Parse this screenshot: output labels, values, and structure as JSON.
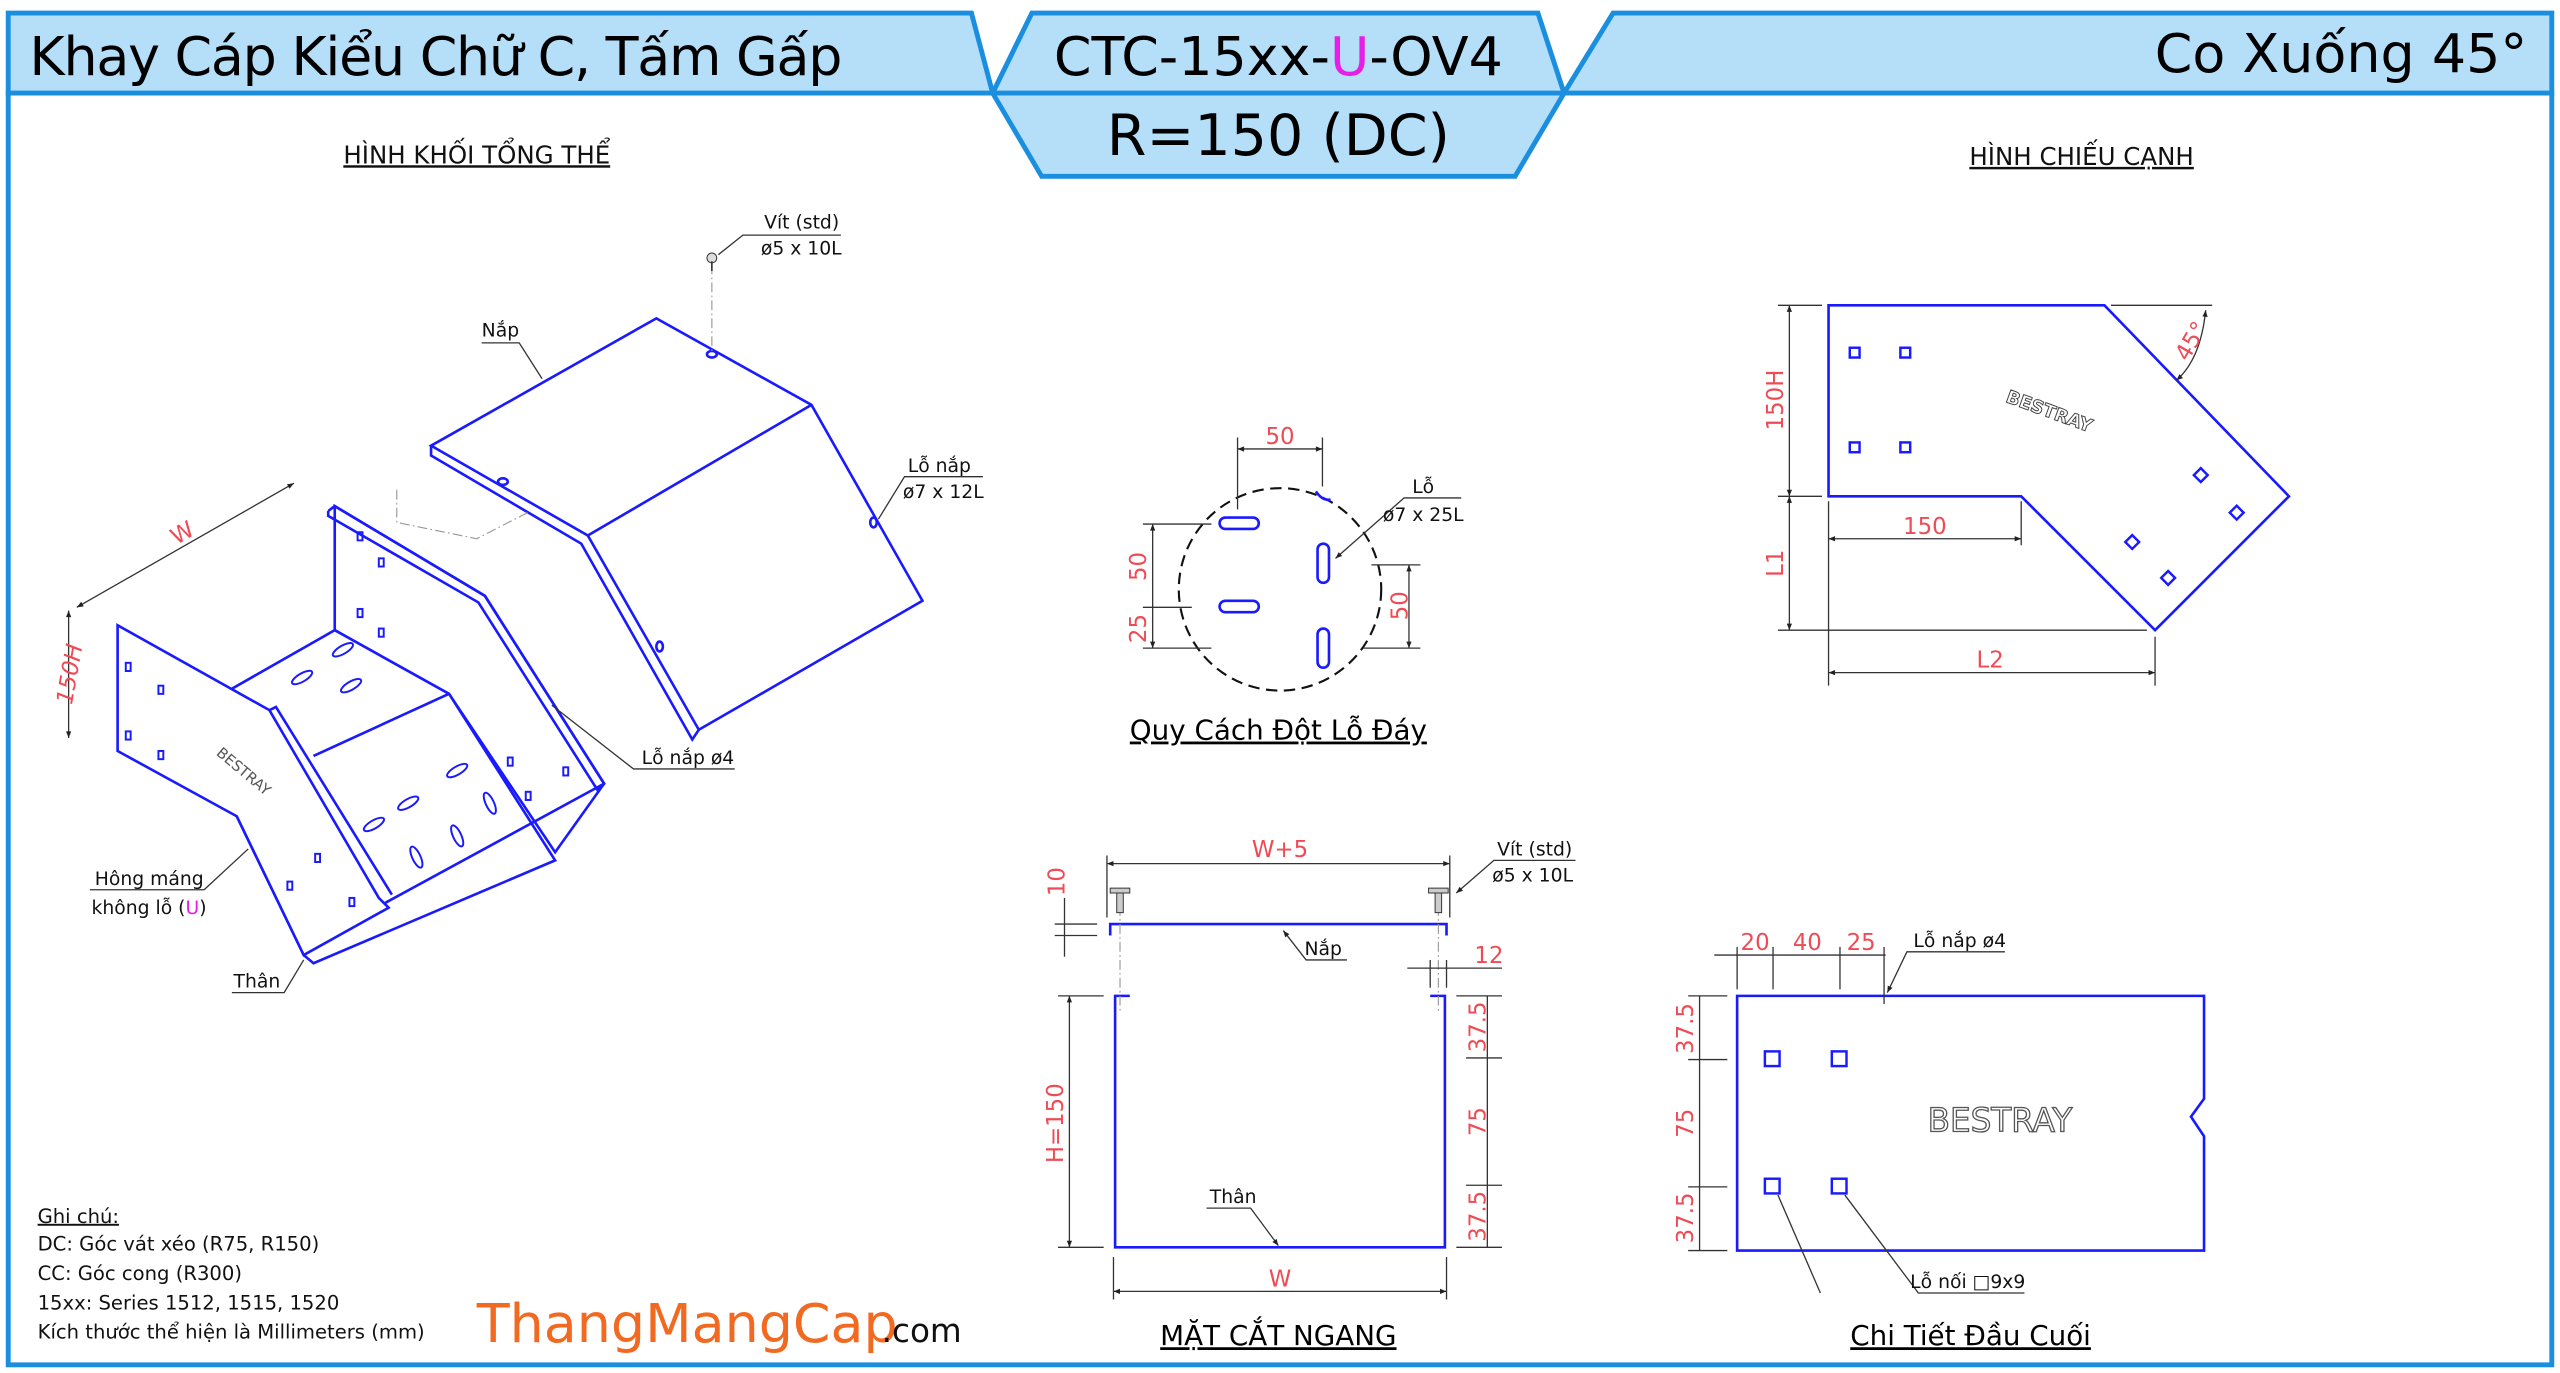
{
  "header": {
    "left_title": "Khay Cáp Kiểu Chữ C, Tấm Gấp",
    "code_prefix": "CTC-15xx-",
    "code_variant": "U",
    "code_suffix": "-OV4",
    "radius": "R=150 (DC)",
    "right_title": "Co Xuống 45°",
    "colors": {
      "panel_fill": "#b5def8",
      "panel_border": "#1a8fe0",
      "variant": "#e61ee6"
    }
  },
  "iso_view": {
    "title": "HÌNH KHỐI TỔNG THỂ",
    "screw_label_1": "Vít (std)",
    "screw_label_2": "ø5 x 10L",
    "cover_label": "Nắp",
    "cover_hole_label_1": "Lỗ nắp",
    "cover_hole_label_2": "ø7 x 12L",
    "cover_hole_small": "Lỗ nắp ø4",
    "side_label_1": "Hông máng",
    "side_label_2a": "không lỗ (",
    "side_label_2b": "U",
    "side_label_2c": ")",
    "body_label": "Thân",
    "dim_w": "W",
    "dim_h": "150H",
    "brand": "BESTRAY"
  },
  "hole_spec": {
    "title": "Quy Cách Đột Lỗ Đáy",
    "dim_top": "50",
    "dim_left_1": "50",
    "dim_left_2": "25",
    "dim_right": "50",
    "hole_label_1": "Lỗ",
    "hole_label_2": "ø7 x 25L"
  },
  "side_view": {
    "title": "HÌNH CHIẾU CẠNH",
    "dim_h": "150H",
    "dim_l1": "L1",
    "dim_150": "150",
    "dim_l2": "L2",
    "angle": "45°",
    "brand": "BESTRAY"
  },
  "section": {
    "title": "MẶT CẮT NGANG",
    "dim_top": "W+5",
    "dim_10": "10",
    "dim_12": "12",
    "dim_h": "H=150",
    "dim_a": "37.5",
    "dim_b": "75",
    "dim_c": "37.5",
    "dim_w": "W",
    "cover_label": "Nắp",
    "body_label": "Thân",
    "screw_label_1": "Vít (std)",
    "screw_label_2": "ø5 x 10L"
  },
  "end_detail": {
    "title": "Chi Tiết Đầu Cuối",
    "dim_20": "20",
    "dim_40": "40",
    "dim_25": "25",
    "cover_hole": "Lỗ nắp ø4",
    "dim_a": "37.5",
    "dim_b": "75",
    "dim_c": "37.5",
    "join_hole": "Lỗ nối □9x9",
    "brand": "BESTRAY"
  },
  "notes": {
    "heading": "Ghi chú:",
    "lines": [
      "DC: Góc vát xéo (R75, R150)",
      "CC: Góc cong (R300)",
      "15xx: Series 1512, 1515, 1520",
      "Kích thước thể hiện là Millimeters (mm)"
    ]
  },
  "logo": {
    "name": "ThangMangCap",
    "tld": ".com",
    "color": "#f26a21"
  }
}
